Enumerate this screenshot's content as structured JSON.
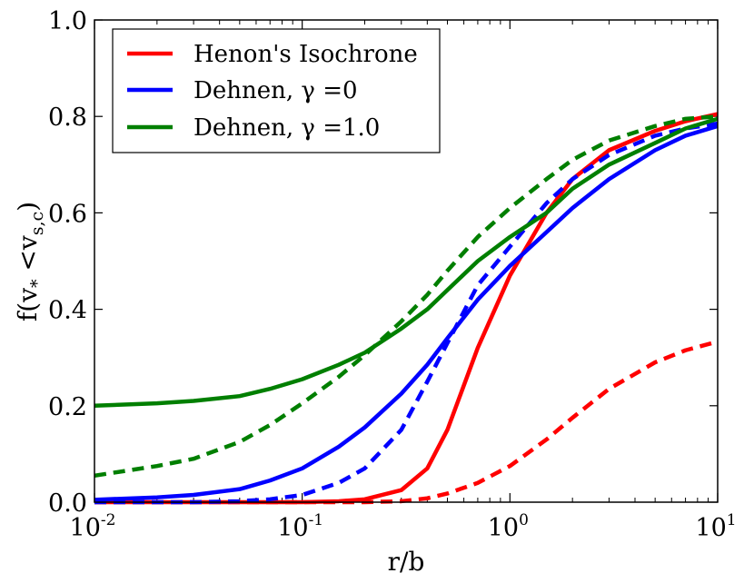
{
  "chart_data": {
    "type": "line",
    "title": "",
    "xlabel": "r/b",
    "ylabel": "f(v",
    "ylabel_sub1": "*",
    "ylabel_mid": " <v",
    "ylabel_sub2": "s,c",
    "ylabel_close": ")",
    "xscale": "log",
    "xlim": [
      0.01,
      10
    ],
    "ylim": [
      0.0,
      1.0
    ],
    "grid": false,
    "legend_position": "top-left",
    "x_ticks": [
      {
        "base": "10",
        "exp": "-2",
        "value": 0.01
      },
      {
        "base": "10",
        "exp": "-1",
        "value": 0.1
      },
      {
        "base": "10",
        "exp": "0",
        "value": 1
      },
      {
        "base": "10",
        "exp": "1",
        "value": 10
      }
    ],
    "y_ticks": [
      {
        "label": "0.0",
        "value": 0.0
      },
      {
        "label": "0.2",
        "value": 0.2
      },
      {
        "label": "0.4",
        "value": 0.4
      },
      {
        "label": "0.6",
        "value": 0.6
      },
      {
        "label": "0.8",
        "value": 0.8
      },
      {
        "label": "1.0",
        "value": 1.0
      }
    ],
    "x": [
      0.01,
      0.02,
      0.03,
      0.05,
      0.07,
      0.1,
      0.15,
      0.2,
      0.3,
      0.4,
      0.5,
      0.7,
      1.0,
      1.5,
      2.0,
      3.0,
      5.0,
      7.0,
      10.0
    ],
    "legend": [
      {
        "name": "Henon's Isochrone",
        "color": "#ff0000"
      },
      {
        "name": "Dehnen, γ =0",
        "color": "#0000ff"
      },
      {
        "name": "Dehnen, γ =1.0",
        "color": "#007f00"
      }
    ],
    "series": [
      {
        "name": "Henon's Isochrone (solid)",
        "color": "#ff0000",
        "dash": false,
        "values": [
          0.0,
          0.0,
          0.0,
          0.0,
          0.0,
          0.0,
          0.002,
          0.006,
          0.025,
          0.07,
          0.15,
          0.32,
          0.47,
          0.6,
          0.67,
          0.73,
          0.77,
          0.79,
          0.805
        ]
      },
      {
        "name": "Henon's Isochrone (dashed)",
        "color": "#ff0000",
        "dash": true,
        "values": [
          0.0,
          0.0,
          0.0,
          0.0,
          0.0,
          0.0,
          0.0,
          0.0,
          0.002,
          0.008,
          0.018,
          0.04,
          0.075,
          0.13,
          0.175,
          0.235,
          0.29,
          0.315,
          0.333
        ]
      },
      {
        "name": "Dehnen, γ =0 (solid)",
        "color": "#0000ff",
        "dash": false,
        "values": [
          0.005,
          0.01,
          0.015,
          0.027,
          0.045,
          0.07,
          0.115,
          0.155,
          0.225,
          0.285,
          0.34,
          0.42,
          0.49,
          0.56,
          0.61,
          0.67,
          0.73,
          0.76,
          0.78
        ]
      },
      {
        "name": "Dehnen, γ =0 (dashed)",
        "color": "#0000ff",
        "dash": true,
        "values": [
          0.0,
          0.0,
          0.0,
          0.002,
          0.006,
          0.015,
          0.04,
          0.07,
          0.15,
          0.25,
          0.33,
          0.45,
          0.53,
          0.62,
          0.67,
          0.72,
          0.76,
          0.775,
          0.785
        ]
      },
      {
        "name": "Dehnen, γ =1.0 (solid)",
        "color": "#007f00",
        "dash": false,
        "values": [
          0.2,
          0.205,
          0.21,
          0.22,
          0.235,
          0.255,
          0.285,
          0.31,
          0.36,
          0.4,
          0.44,
          0.5,
          0.55,
          0.6,
          0.65,
          0.7,
          0.745,
          0.775,
          0.795
        ]
      },
      {
        "name": "Dehnen, γ =1.0 (dashed)",
        "color": "#007f00",
        "dash": true,
        "values": [
          0.055,
          0.075,
          0.09,
          0.125,
          0.16,
          0.205,
          0.26,
          0.305,
          0.375,
          0.43,
          0.48,
          0.55,
          0.61,
          0.67,
          0.71,
          0.75,
          0.78,
          0.795,
          0.8
        ]
      }
    ]
  }
}
